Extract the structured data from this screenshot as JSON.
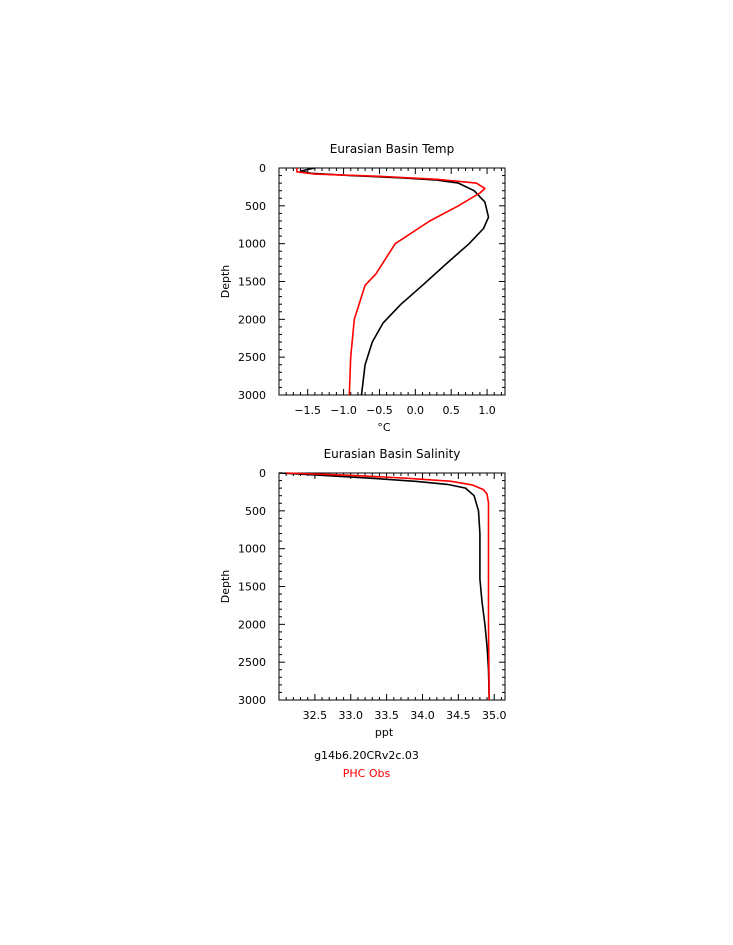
{
  "chart_data": [
    {
      "type": "line",
      "title": "Eurasian Basin Temp",
      "xlabel": "°C",
      "ylabel": "Depth",
      "xlim": [
        -1.9,
        1.25
      ],
      "ylim": [
        3000,
        0
      ],
      "xticks": [
        -1.5,
        -1.0,
        -0.5,
        0.0,
        0.5,
        1.0
      ],
      "xtick_labels": [
        "−1.5",
        "−1.0",
        "−0.5",
        "0.0",
        "0.5",
        "1.0"
      ],
      "yticks": [
        0,
        500,
        1000,
        1500,
        2000,
        2500,
        3000
      ],
      "ytick_labels": [
        "0",
        "500",
        "1000",
        "1500",
        "2000",
        "2500",
        "3000"
      ],
      "series": [
        {
          "name": "g14b6.20CRv2c.03",
          "color": "#000000",
          "points": [
            [
              -1.4,
              0
            ],
            [
              -1.6,
              40
            ],
            [
              -1.45,
              70
            ],
            [
              -0.9,
              100
            ],
            [
              -0.2,
              130
            ],
            [
              0.3,
              160
            ],
            [
              0.6,
              200
            ],
            [
              0.82,
              300
            ],
            [
              0.97,
              450
            ],
            [
              1.02,
              650
            ],
            [
              0.95,
              800
            ],
            [
              0.75,
              1000
            ],
            [
              0.45,
              1250
            ],
            [
              0.1,
              1550
            ],
            [
              -0.2,
              1800
            ],
            [
              -0.45,
              2050
            ],
            [
              -0.6,
              2300
            ],
            [
              -0.7,
              2600
            ],
            [
              -0.75,
              3000
            ]
          ]
        },
        {
          "name": "PHC Obs",
          "color": "#ff0000",
          "points": [
            [
              -1.65,
              0
            ],
            [
              -1.65,
              50
            ],
            [
              -1.4,
              80
            ],
            [
              -0.5,
              110
            ],
            [
              0.3,
              150
            ],
            [
              0.85,
              200
            ],
            [
              0.97,
              270
            ],
            [
              0.9,
              330
            ],
            [
              0.6,
              500
            ],
            [
              0.2,
              700
            ],
            [
              -0.28,
              1000
            ],
            [
              -0.55,
              1400
            ],
            [
              -0.7,
              1550
            ],
            [
              -0.85,
              2000
            ],
            [
              -0.9,
              2500
            ],
            [
              -0.92,
              3000
            ]
          ]
        }
      ]
    },
    {
      "type": "line",
      "title": "Eurasian Basin Salinity",
      "xlabel": "ppt",
      "ylabel": "Depth",
      "xlim": [
        32.0,
        35.15
      ],
      "ylim": [
        3000,
        0
      ],
      "xticks": [
        32.5,
        33.0,
        33.5,
        34.0,
        34.5,
        35.0
      ],
      "xtick_labels": [
        "32.5",
        "33.0",
        "33.5",
        "34.0",
        "34.5",
        "35.0"
      ],
      "yticks": [
        0,
        500,
        1000,
        1500,
        2000,
        2500,
        3000
      ],
      "ytick_labels": [
        "0",
        "500",
        "1000",
        "1500",
        "2000",
        "2500",
        "3000"
      ],
      "series": [
        {
          "name": "g14b6.20CRv2c.03",
          "color": "#000000",
          "points": [
            [
              32.0,
              0
            ],
            [
              32.6,
              30
            ],
            [
              33.3,
              70
            ],
            [
              33.9,
              110
            ],
            [
              34.35,
              150
            ],
            [
              34.6,
              200
            ],
            [
              34.72,
              300
            ],
            [
              34.78,
              500
            ],
            [
              34.8,
              800
            ],
            [
              34.8,
              1000
            ],
            [
              34.8,
              1400
            ],
            [
              34.83,
              1700
            ],
            [
              34.87,
              2000
            ],
            [
              34.9,
              2300
            ],
            [
              34.92,
              2600
            ],
            [
              34.93,
              3000
            ]
          ]
        },
        {
          "name": "PHC Obs",
          "color": "#ff0000",
          "points": [
            [
              32.1,
              0
            ],
            [
              33.0,
              30
            ],
            [
              33.8,
              70
            ],
            [
              34.4,
              110
            ],
            [
              34.7,
              160
            ],
            [
              34.85,
              220
            ],
            [
              34.9,
              280
            ],
            [
              34.92,
              400
            ],
            [
              34.92,
              1000
            ],
            [
              34.92,
              2000
            ],
            [
              34.93,
              3000
            ]
          ]
        }
      ]
    }
  ],
  "legend": {
    "model": "g14b6.20CRv2c.03",
    "obs": "PHC Obs"
  },
  "colors": {
    "model": "#000000",
    "obs": "#ff0000"
  }
}
